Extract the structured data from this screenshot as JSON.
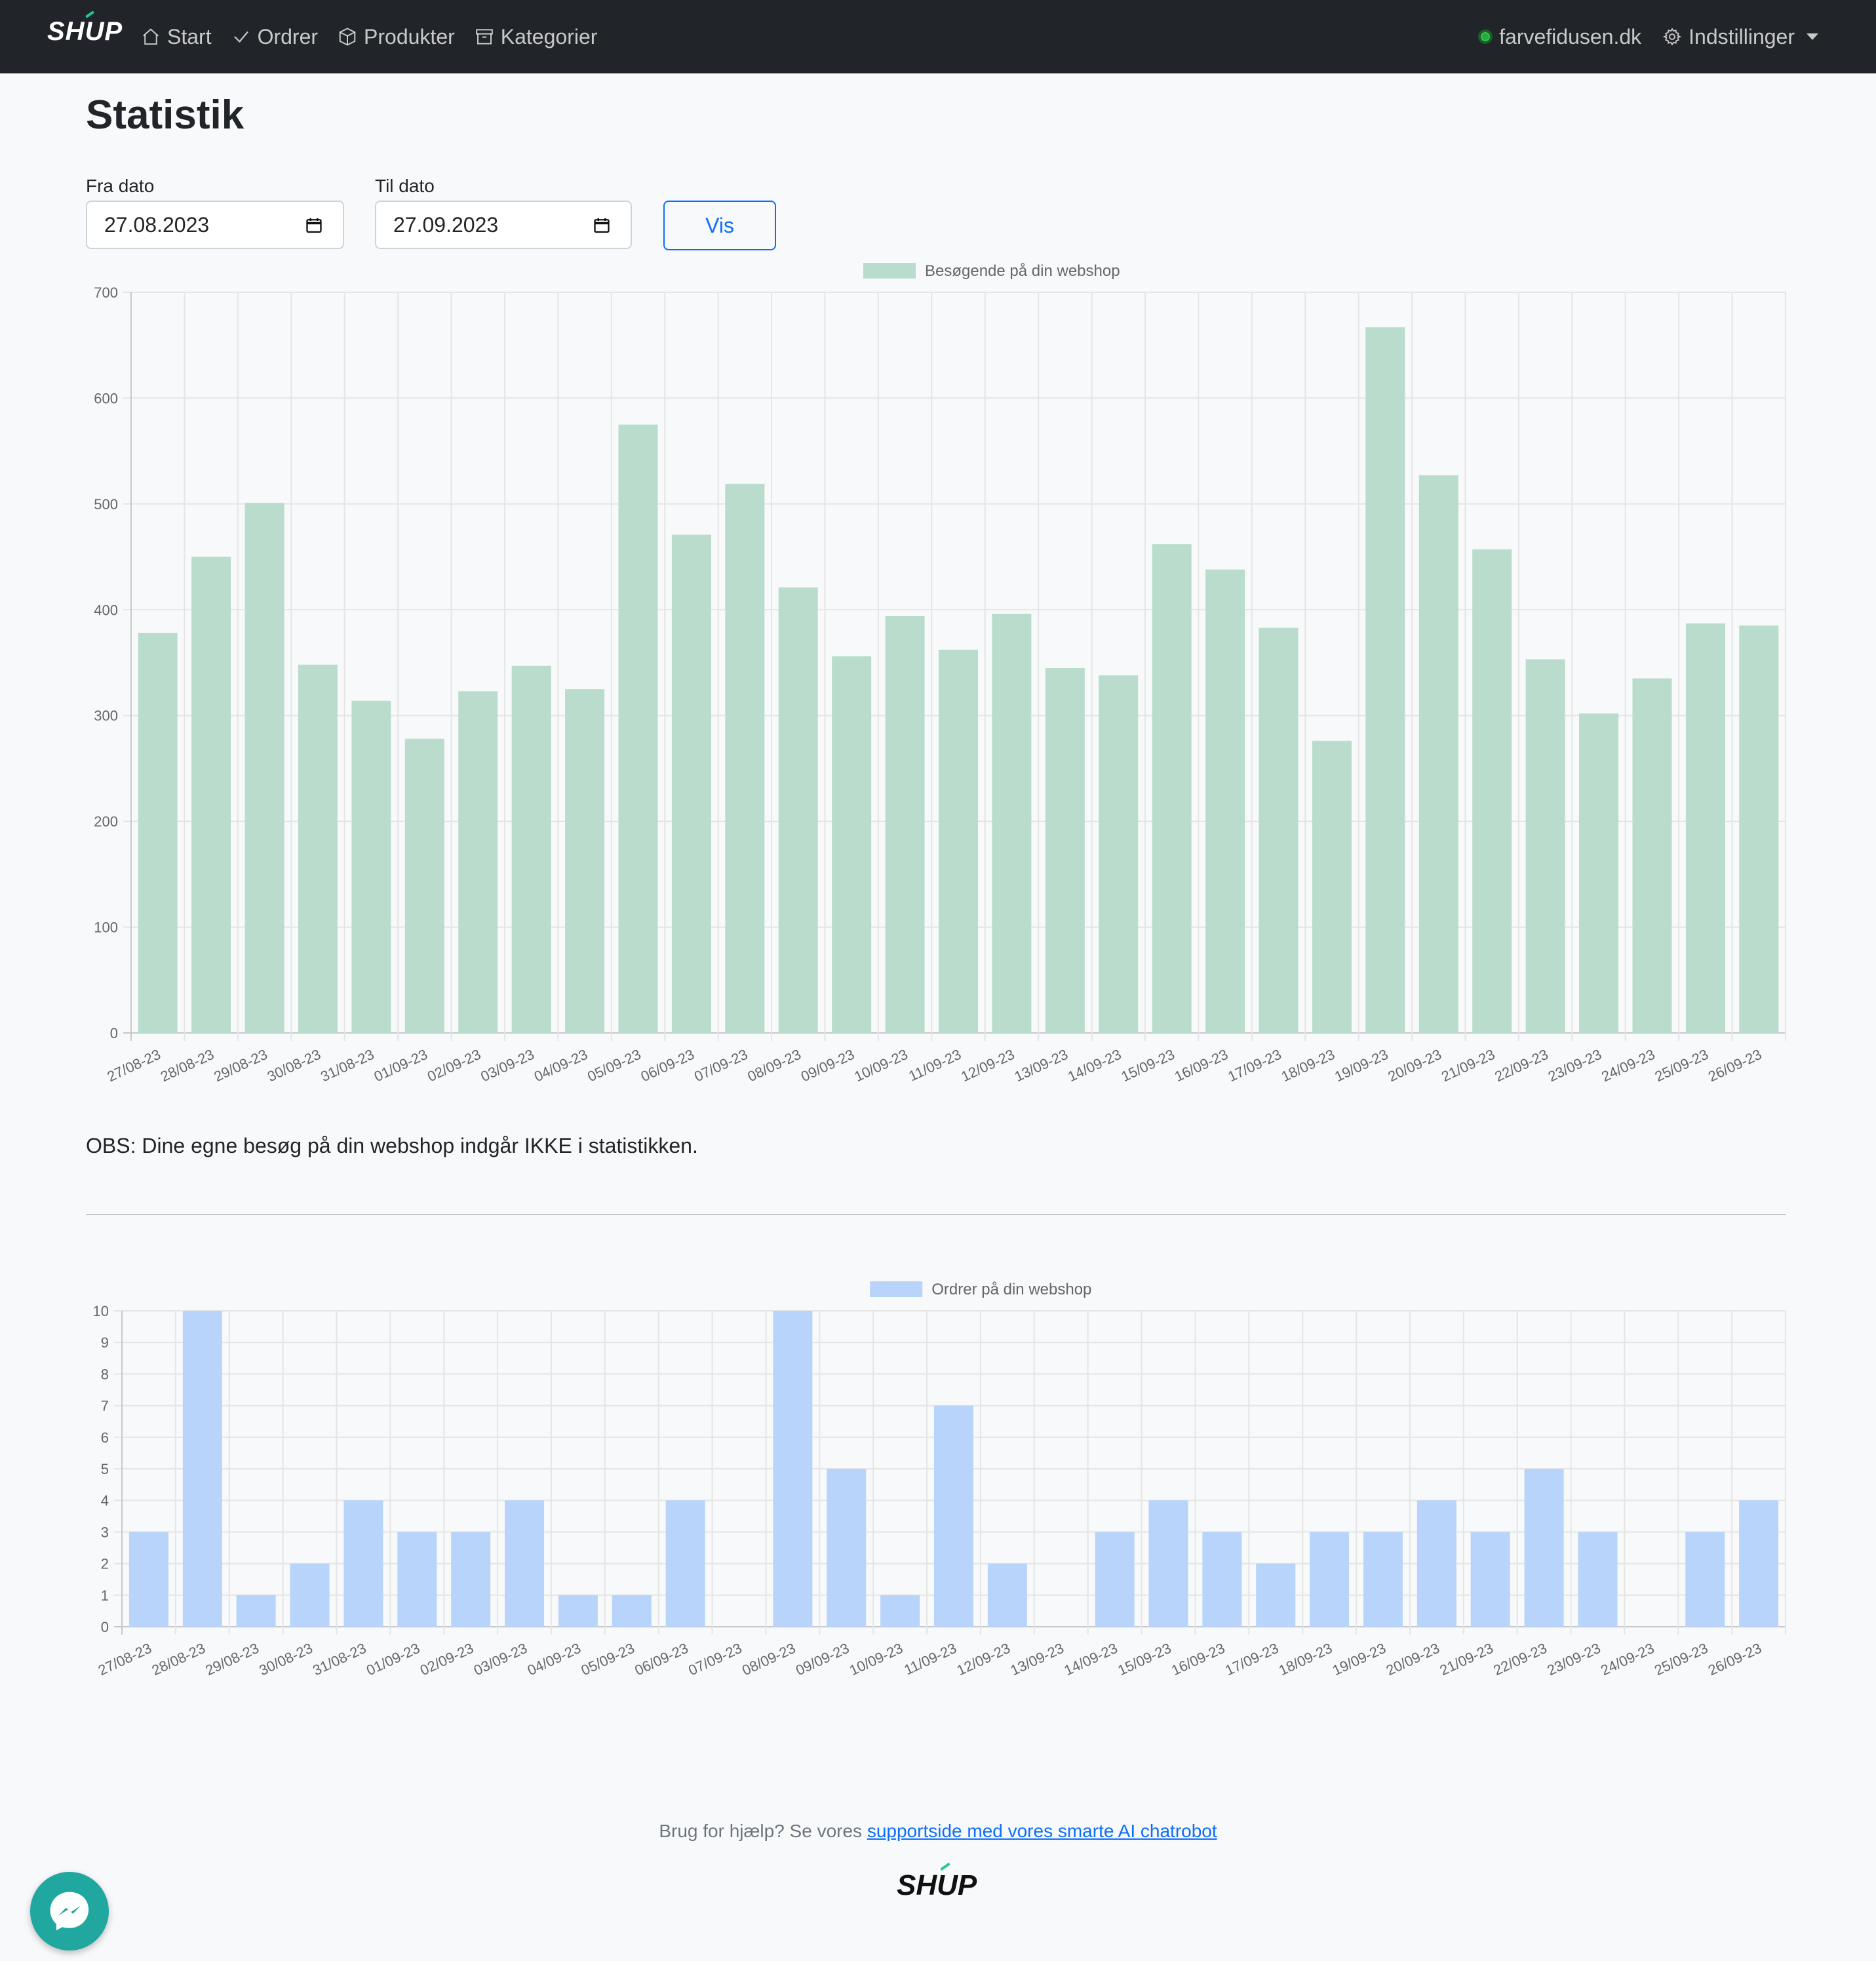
{
  "nav": {
    "brand": "SHUP",
    "items": [
      {
        "label": "Start",
        "icon": "home-icon"
      },
      {
        "label": "Ordrer",
        "icon": "check-icon"
      },
      {
        "label": "Produkter",
        "icon": "box-icon"
      },
      {
        "label": "Kategorier",
        "icon": "archive-icon"
      }
    ],
    "shop": "farvefidusen.dk",
    "settings": "Indstillinger"
  },
  "page": {
    "title": "Statistik",
    "from_label": "Fra dato",
    "from_value": "27.08.2023",
    "to_label": "Til dato",
    "to_value": "27.09.2023",
    "show_button": "Vis",
    "note": "OBS: Dine egne besøg på din webshop indgår IKKE i statistikken."
  },
  "chart_data": [
    {
      "type": "bar",
      "legend": "Besøgende på din webshop",
      "color": "#b9dccc",
      "ylim": [
        0,
        700
      ],
      "yticks": [
        0,
        100,
        200,
        300,
        400,
        500,
        600,
        700
      ],
      "categories": [
        "27/08-23",
        "28/08-23",
        "29/08-23",
        "30/08-23",
        "31/08-23",
        "01/09-23",
        "02/09-23",
        "03/09-23",
        "04/09-23",
        "05/09-23",
        "06/09-23",
        "07/09-23",
        "08/09-23",
        "09/09-23",
        "10/09-23",
        "11/09-23",
        "12/09-23",
        "13/09-23",
        "14/09-23",
        "15/09-23",
        "16/09-23",
        "17/09-23",
        "18/09-23",
        "19/09-23",
        "20/09-23",
        "21/09-23",
        "22/09-23",
        "23/09-23",
        "24/09-23",
        "25/09-23",
        "26/09-23"
      ],
      "values": [
        378,
        450,
        501,
        348,
        314,
        278,
        323,
        347,
        325,
        575,
        471,
        519,
        421,
        356,
        394,
        362,
        396,
        345,
        338,
        462,
        438,
        383,
        276,
        667,
        527,
        457,
        353,
        302,
        335,
        387,
        385
      ]
    },
    {
      "type": "bar",
      "legend": "Ordrer på din webshop",
      "color": "#b8d4fb",
      "ylim": [
        0,
        10
      ],
      "yticks": [
        0,
        1,
        2,
        3,
        4,
        5,
        6,
        7,
        8,
        9,
        10
      ],
      "categories": [
        "27/08-23",
        "28/08-23",
        "29/08-23",
        "30/08-23",
        "31/08-23",
        "01/09-23",
        "02/09-23",
        "03/09-23",
        "04/09-23",
        "05/09-23",
        "06/09-23",
        "07/09-23",
        "08/09-23",
        "09/09-23",
        "10/09-23",
        "11/09-23",
        "12/09-23",
        "13/09-23",
        "14/09-23",
        "15/09-23",
        "16/09-23",
        "17/09-23",
        "18/09-23",
        "19/09-23",
        "20/09-23",
        "21/09-23",
        "22/09-23",
        "23/09-23",
        "24/09-23",
        "25/09-23",
        "26/09-23"
      ],
      "values": [
        3,
        10,
        1,
        2,
        4,
        3,
        3,
        4,
        1,
        1,
        4,
        0,
        10,
        5,
        1,
        7,
        2,
        0,
        3,
        4,
        3,
        2,
        3,
        3,
        4,
        3,
        5,
        3,
        0,
        3,
        4
      ]
    }
  ],
  "footer": {
    "help_text": "Brug for hjælp? Se vores",
    "help_link": "supportside med vores smarte AI chatrobot",
    "logo": "SHUP"
  }
}
